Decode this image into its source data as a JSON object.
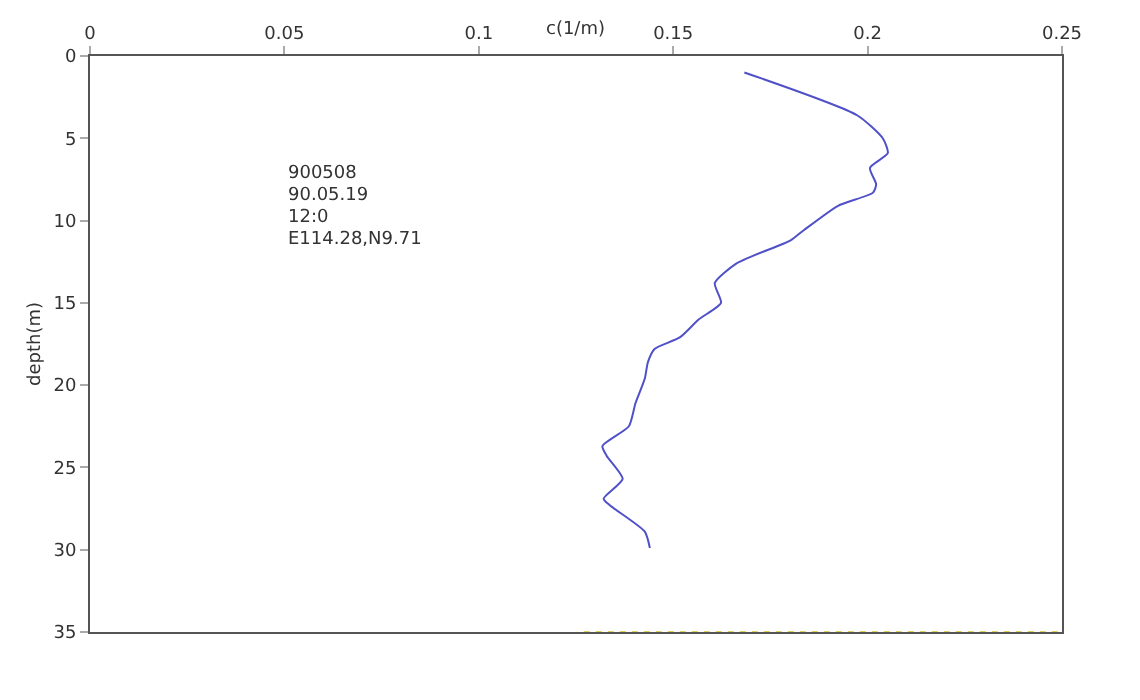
{
  "chart_data": {
    "type": "line",
    "xlabel": "c(1/m)",
    "ylabel": "depth(m)",
    "annotations": [
      "900508",
      "90.05.19",
      "12:0",
      "E114.28,N9.71"
    ],
    "xlim": [
      0,
      0.25
    ],
    "xticks": [
      0,
      0.05,
      0.1,
      0.15,
      0.2,
      0.25
    ],
    "ylim": [
      35,
      0
    ],
    "yticks": [
      0,
      5,
      10,
      15,
      20,
      25,
      30,
      35
    ],
    "legend": false,
    "marker": "none",
    "series": [
      {
        "color": "#5050c8",
        "line_style": "solid",
        "x": [
          0.1683,
          0.1973,
          0.2039,
          0.2052,
          0.2006,
          0.2022,
          0.2014,
          0.1924,
          0.1835,
          0.1802,
          0.1663,
          0.1607,
          0.1623,
          0.1566,
          0.1517,
          0.1452,
          0.1435,
          0.1427,
          0.1403,
          0.1386,
          0.1318,
          0.1329,
          0.137,
          0.1321,
          0.1337,
          0.1427,
          0.144
        ],
        "values": [
          1.0,
          3.6,
          5.0,
          5.9,
          6.8,
          7.8,
          8.3,
          9.1,
          10.6,
          11.2,
          12.6,
          13.8,
          15.0,
          16.0,
          17.1,
          17.8,
          18.6,
          19.6,
          21.1,
          22.5,
          23.7,
          24.3,
          25.7,
          26.9,
          27.3,
          28.9,
          29.9
        ]
      },
      {
        "color": "#e0d060",
        "line_style": "dotted",
        "x": [
          0.127,
          0.25
        ],
        "values": [
          35,
          35
        ]
      }
    ]
  }
}
